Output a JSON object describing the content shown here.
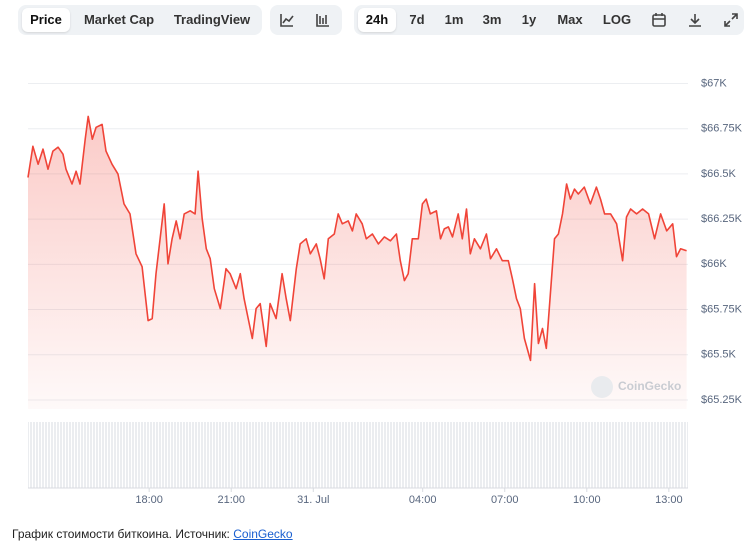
{
  "toolbar": {
    "views": [
      "Price",
      "Market Cap",
      "TradingView"
    ],
    "ranges": [
      "24h",
      "7d",
      "1m",
      "3m",
      "1y",
      "Max",
      "LOG"
    ]
  },
  "watermark": "CoinGecko",
  "caption": {
    "text": "График стоимости биткоина. Источник: ",
    "link": "CoinGecko"
  },
  "chart_data": {
    "type": "line",
    "color": "#f04438",
    "grid": true,
    "xlim": [
      13.57,
      37.7
    ],
    "ylim": [
      65200,
      67130
    ],
    "xticks": [
      {
        "value": 18,
        "label": "18:00"
      },
      {
        "value": 21,
        "label": "21:00"
      },
      {
        "value": 24,
        "label": "31. Jul"
      },
      {
        "value": 28,
        "label": "04:00"
      },
      {
        "value": 31,
        "label": "07:00"
      },
      {
        "value": 34,
        "label": "10:00"
      },
      {
        "value": 37,
        "label": "13:00"
      }
    ],
    "yticks": [
      {
        "value": 67000,
        "label": "$67K"
      },
      {
        "value": 66750,
        "label": "$66.75K"
      },
      {
        "value": 66500,
        "label": "$66.5K"
      },
      {
        "value": 66250,
        "label": "$66.25K"
      },
      {
        "value": 66000,
        "label": "$66K"
      },
      {
        "value": 65750,
        "label": "$65.75K"
      },
      {
        "value": 65500,
        "label": "$65.5K"
      },
      {
        "value": 65250,
        "label": "$65.25K"
      }
    ],
    "x": [
      13.57,
      13.75,
      13.94,
      14.12,
      14.3,
      14.48,
      14.67,
      14.85,
      14.96,
      15.18,
      15.33,
      15.47,
      15.66,
      15.77,
      15.92,
      16.06,
      16.28,
      16.42,
      16.64,
      16.86,
      17.08,
      17.3,
      17.52,
      17.74,
      17.96,
      18.11,
      18.25,
      18.4,
      18.55,
      18.69,
      18.84,
      18.99,
      19.13,
      19.28,
      19.5,
      19.68,
      19.79,
      19.94,
      20.09,
      20.23,
      20.38,
      20.6,
      20.81,
      20.96,
      21.18,
      21.33,
      21.47,
      21.62,
      21.77,
      21.91,
      22.06,
      22.28,
      22.42,
      22.64,
      22.86,
      23.01,
      23.16,
      23.38,
      23.52,
      23.74,
      23.89,
      24.11,
      24.25,
      24.4,
      24.55,
      24.77,
      24.91,
      25.06,
      25.28,
      25.43,
      25.57,
      25.79,
      25.94,
      26.16,
      26.38,
      26.6,
      26.82,
      27.04,
      27.18,
      27.33,
      27.47,
      27.62,
      27.84,
      27.99,
      28.13,
      28.28,
      28.5,
      28.65,
      28.79,
      28.94,
      29.09,
      29.3,
      29.45,
      29.6,
      29.74,
      29.89,
      30.11,
      30.33,
      30.48,
      30.7,
      30.91,
      31.13,
      31.28,
      31.43,
      31.57,
      31.72,
      31.94,
      32.09,
      32.23,
      32.38,
      32.52,
      32.67,
      32.82,
      32.96,
      33.11,
      33.26,
      33.4,
      33.55,
      33.69,
      33.91,
      34.13,
      34.35,
      34.5,
      34.65,
      34.87,
      35.09,
      35.31,
      35.45,
      35.6,
      35.82,
      36.04,
      36.26,
      36.48,
      36.7,
      36.92,
      37.14,
      37.28,
      37.43,
      37.65
    ],
    "values": [
      66480,
      66653,
      66554,
      66637,
      66526,
      66626,
      66648,
      66609,
      66526,
      66444,
      66515,
      66444,
      66692,
      66818,
      66692,
      66758,
      66774,
      66626,
      66554,
      66499,
      66334,
      66279,
      66058,
      65987,
      65689,
      65700,
      65948,
      66141,
      66334,
      66003,
      66141,
      66240,
      66141,
      66279,
      66296,
      66279,
      66515,
      66251,
      66086,
      66031,
      65865,
      65755,
      65976,
      65948,
      65865,
      65948,
      65810,
      65700,
      65590,
      65755,
      65783,
      65546,
      65783,
      65700,
      65948,
      65810,
      65689,
      65976,
      66113,
      66141,
      66058,
      66113,
      66031,
      65920,
      66141,
      66168,
      66279,
      66224,
      66240,
      66185,
      66279,
      66224,
      66141,
      66168,
      66113,
      66152,
      66130,
      66168,
      66020,
      65910,
      65948,
      66141,
      66141,
      66334,
      66361,
      66279,
      66296,
      66141,
      66196,
      66207,
      66152,
      66279,
      66141,
      66306,
      66058,
      66141,
      66086,
      66168,
      66031,
      66086,
      66020,
      66020,
      65920,
      65810,
      65755,
      65590,
      65469,
      65893,
      65562,
      65645,
      65535,
      65838,
      66141,
      66168,
      66279,
      66444,
      66361,
      66416,
      66389,
      66427,
      66334,
      66427,
      66361,
      66279,
      66279,
      66224,
      66020,
      66262,
      66306,
      66279,
      66306,
      66279,
      66141,
      66279,
      66185,
      66224,
      66042,
      66086,
      66075
    ]
  }
}
